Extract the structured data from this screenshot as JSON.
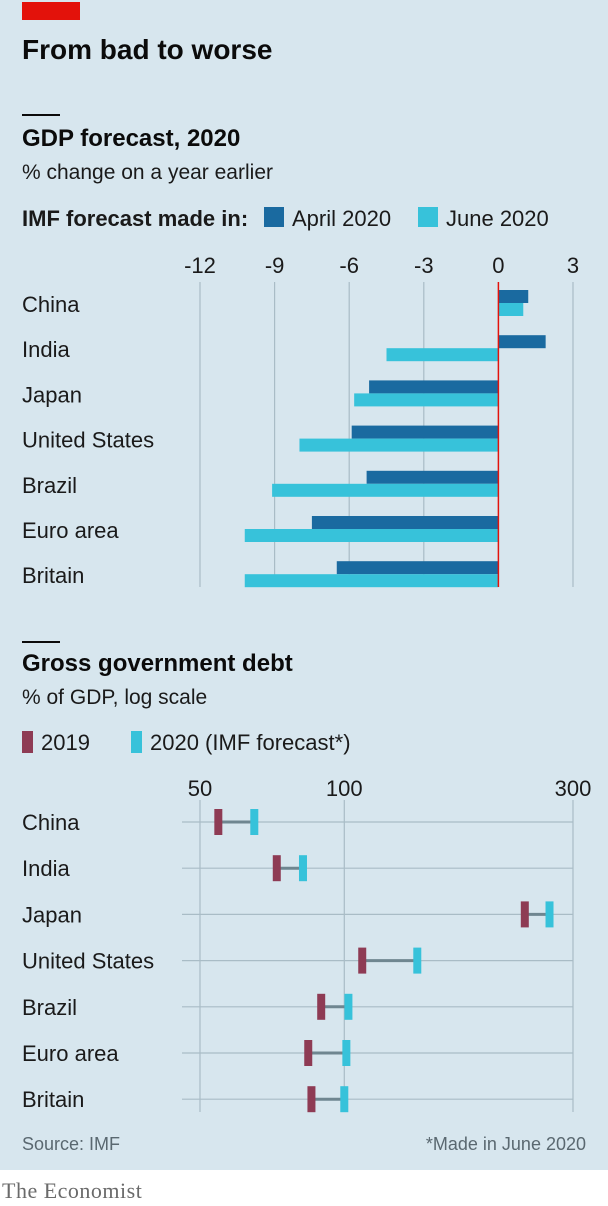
{
  "title": "From bad to worse",
  "colors": {
    "background": "#d7e6ee",
    "accent_red": "#e3120b",
    "april": "#1a6aa0",
    "june": "#37c2da",
    "y2019": "#8e3b54",
    "y2020": "#37c2da",
    "connector": "#6f8690",
    "zero_line": "#e3120b",
    "gridline": "#a9bcc6"
  },
  "chart_data": [
    {
      "type": "bar",
      "orientation": "horizontal",
      "title": "GDP forecast, 2020",
      "subtitle": "% change on a year earlier",
      "legend_title": "IMF forecast made in:",
      "categories": [
        "China",
        "India",
        "Japan",
        "United States",
        "Brazil",
        "Euro area",
        "Britain"
      ],
      "series": [
        {
          "name": "April 2020",
          "values": [
            1.2,
            1.9,
            -5.2,
            -5.9,
            -5.3,
            -7.5,
            -6.5
          ]
        },
        {
          "name": "June 2020",
          "values": [
            1.0,
            -4.5,
            -5.8,
            -8.0,
            -9.1,
            -10.2,
            -10.2
          ]
        }
      ],
      "xlim": [
        -12,
        3
      ],
      "ticks": [
        -12,
        -9,
        -6,
        -3,
        0,
        3
      ],
      "tick_labels": [
        "-12",
        "-9",
        "-6",
        "-3",
        "0",
        "3"
      ]
    },
    {
      "type": "dumbbell",
      "scale": "log",
      "title": "Gross government debt",
      "subtitle": "% of GDP, log scale",
      "categories": [
        "China",
        "India",
        "Japan",
        "United States",
        "Brazil",
        "Euro area",
        "Britain"
      ],
      "series": [
        {
          "name": "2019",
          "values": [
            54.6,
            72.3,
            238,
            109,
            89.5,
            84.1,
            85.4
          ]
        },
        {
          "name": "2020 (IMF forecast*)",
          "values": [
            64.9,
            82.0,
            268,
            142,
            102,
            101,
            100
          ]
        }
      ],
      "xlim": [
        50,
        300
      ],
      "ticks": [
        50,
        100,
        300
      ],
      "tick_labels": [
        "50",
        "100",
        "300"
      ]
    }
  ],
  "source": "Source: IMF",
  "footnote": "*Made in June 2020",
  "brand": "The Economist"
}
